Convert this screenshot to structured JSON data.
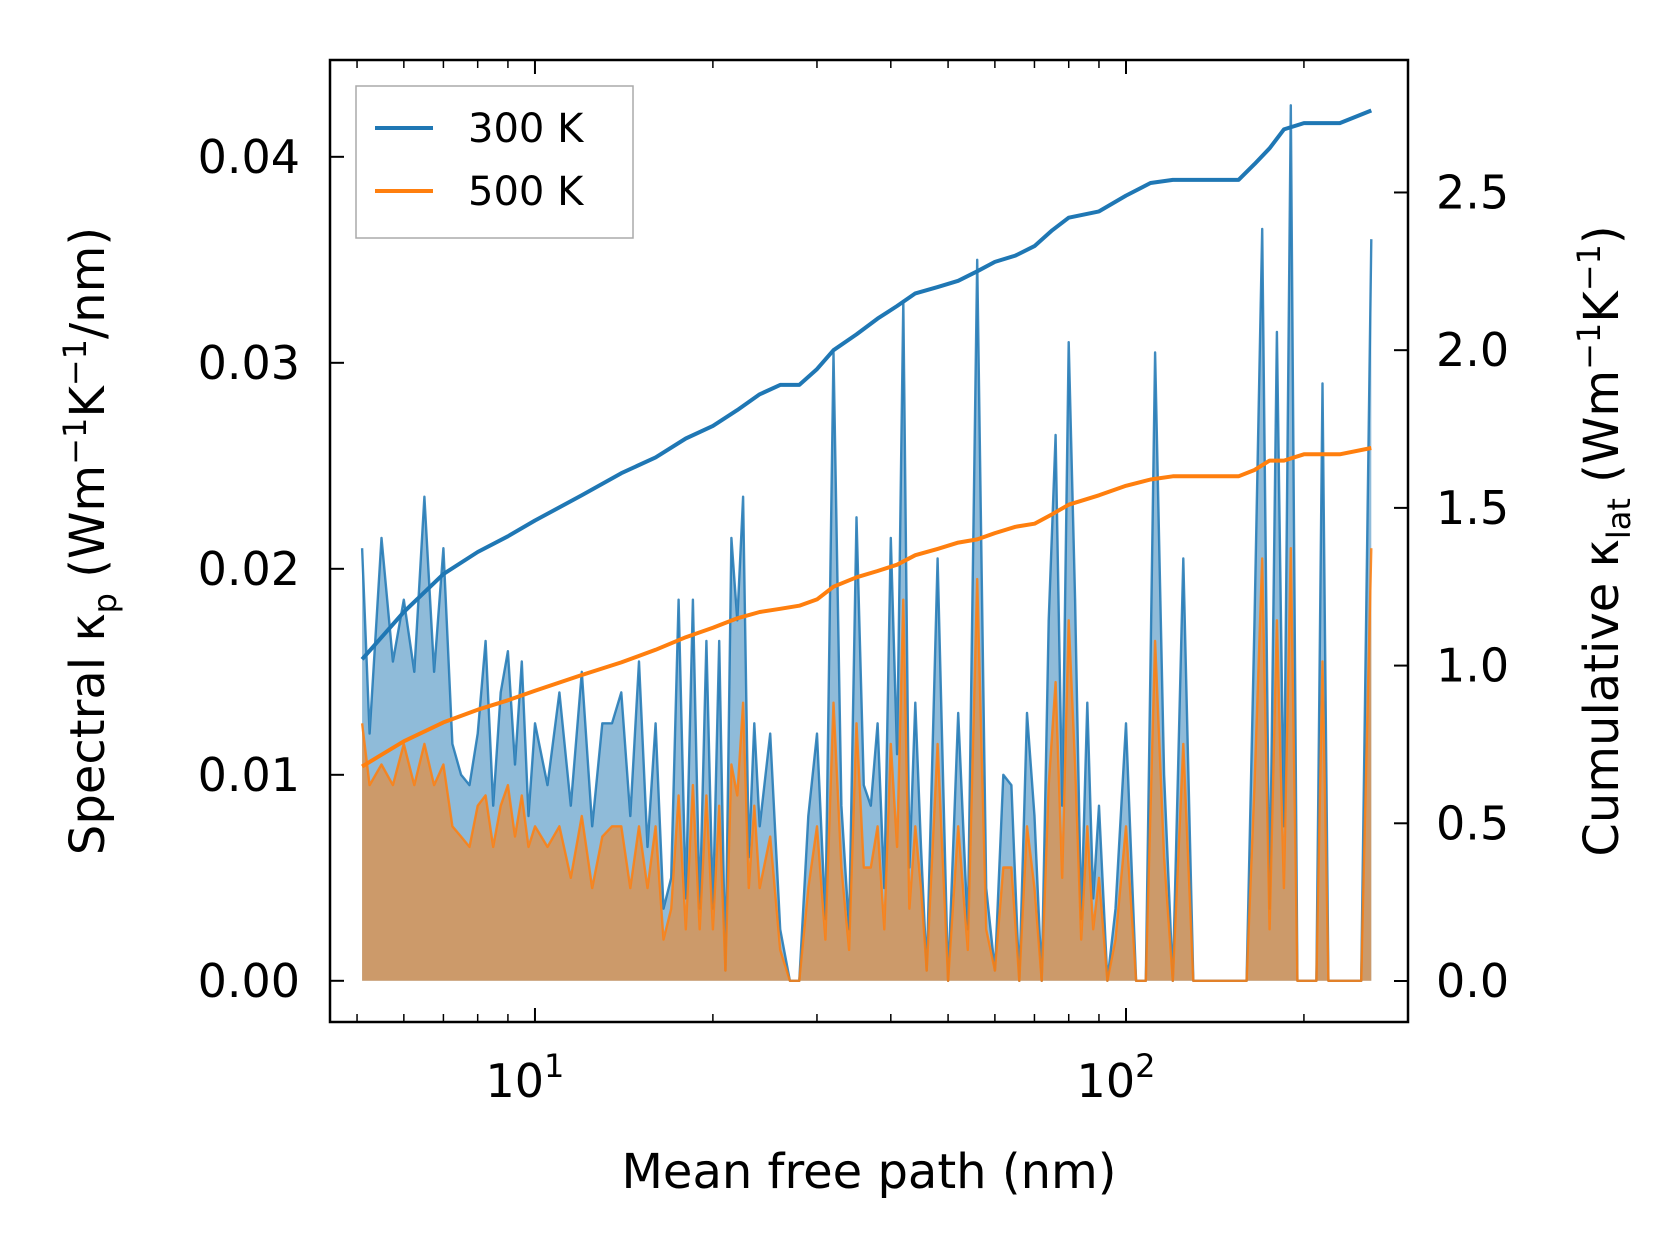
{
  "chart_data": {
    "type": "line",
    "xscale": "log",
    "xlabel": "Mean free path (nm)",
    "ylabel_left": "Spectral κp (Wm−1K−1/nm)",
    "ylabel_left_parts": {
      "pre": "Spectral κ",
      "sub": "p",
      "mid1": " (Wm",
      "sup1": "−1",
      "mid2": "K",
      "sup2": "−1",
      "post": "/nm)"
    },
    "ylabel_right": "Cumulative κlat (Wm−1K−1)",
    "ylabel_right_parts": {
      "pre": "Cumulative κ",
      "sub": "lat",
      "mid1": " (Wm",
      "sup1": "−1",
      "mid2": "K",
      "sup2": "−1",
      "post": ")"
    },
    "xlim": [
      4.5,
      300
    ],
    "ylim_left": [
      -0.002,
      0.0447
    ],
    "ylim_right": [
      -0.13,
      2.92
    ],
    "x_ticks": [
      {
        "value": 10,
        "base": "10",
        "exp": "1"
      },
      {
        "value": 100,
        "base": "10",
        "exp": "2"
      }
    ],
    "y_ticks_left": [
      "0.00",
      "0.01",
      "0.02",
      "0.03",
      "0.04"
    ],
    "y_ticks_right": [
      "0.0",
      "0.5",
      "1.0",
      "1.5",
      "2.0",
      "2.5"
    ],
    "legend": {
      "placement": "top-left",
      "entries": [
        "300 K",
        "500 K"
      ]
    },
    "colors": {
      "300 K": "#1f77b4",
      "500 K": "#ff7f0e",
      "fill_300": "#1f77b4",
      "fill_500": "#ff7f0e"
    },
    "spectral": {
      "300 K": {
        "x": [
          5.1,
          5.25,
          5.5,
          5.75,
          6.0,
          6.25,
          6.5,
          6.75,
          7.0,
          7.25,
          7.5,
          7.75,
          8.0,
          8.25,
          8.5,
          8.75,
          9.0,
          9.25,
          9.5,
          9.75,
          10.0,
          10.5,
          11.0,
          11.5,
          12.0,
          12.5,
          13.0,
          13.5,
          14.0,
          14.5,
          15.0,
          15.5,
          16.0,
          16.5,
          17.0,
          17.5,
          18.0,
          18.5,
          19.0,
          19.5,
          20.0,
          20.5,
          21.0,
          21.5,
          22.0,
          22.5,
          23.0,
          23.5,
          24.0,
          25.0,
          26.0,
          27.0,
          28.0,
          29.0,
          30.0,
          31.0,
          32.0,
          33.0,
          34.0,
          35.0,
          36.0,
          37.0,
          38.0,
          39.0,
          40.0,
          41.0,
          42.0,
          43.0,
          44.0,
          45.0,
          46.0,
          48.0,
          50.0,
          52.0,
          54.0,
          56.0,
          58.0,
          60.0,
          62.0,
          64.0,
          66.0,
          68.0,
          70.0,
          72.0,
          74.0,
          76.0,
          78.0,
          80.0,
          82.0,
          84.0,
          86.0,
          88.0,
          90.0,
          93.0,
          96.0,
          100.0,
          104.0,
          108.0,
          112.0,
          116.0,
          120.0,
          125.0,
          130.0,
          140.0,
          150.0,
          160.0,
          165.0,
          170.0,
          175.0,
          180.0,
          185.0,
          190.0,
          195.0,
          200.0,
          205.0,
          210.0,
          215.0,
          220.0,
          230.0,
          240.0,
          250.0,
          260.0
        ],
        "y": [
          0.021,
          0.012,
          0.0215,
          0.0155,
          0.0185,
          0.015,
          0.0235,
          0.015,
          0.021,
          0.0115,
          0.01,
          0.0095,
          0.012,
          0.0165,
          0.0085,
          0.014,
          0.016,
          0.0105,
          0.0155,
          0.008,
          0.0125,
          0.0095,
          0.014,
          0.0085,
          0.015,
          0.0075,
          0.0125,
          0.0125,
          0.014,
          0.008,
          0.0155,
          0.0065,
          0.0125,
          0.0035,
          0.005,
          0.0185,
          0.004,
          0.0185,
          0.0035,
          0.0165,
          0.0035,
          0.0165,
          0.0005,
          0.0215,
          0.0175,
          0.0235,
          0.006,
          0.0125,
          0.0075,
          0.012,
          0.0025,
          0.0,
          0.0,
          0.008,
          0.012,
          0.003,
          0.0305,
          0.0085,
          0.0025,
          0.0225,
          0.0095,
          0.0085,
          0.0125,
          0.0045,
          0.0215,
          0.011,
          0.033,
          0.0055,
          0.0135,
          0.0065,
          0.0005,
          0.0205,
          0.0,
          0.013,
          0.0025,
          0.035,
          0.0045,
          0.0005,
          0.01,
          0.0095,
          0.0,
          0.013,
          0.008,
          0.0,
          0.0175,
          0.0265,
          0.0085,
          0.031,
          0.0185,
          0.003,
          0.0135,
          0.004,
          0.0085,
          0.0,
          0.0035,
          0.0125,
          0.0,
          0.0,
          0.0305,
          0.01,
          0.0,
          0.0205,
          0.0,
          0.0,
          0.0,
          0.0,
          0.0175,
          0.0365,
          0.0035,
          0.0315,
          0.0075,
          0.0425,
          0.0,
          0.0,
          0.0,
          0.0,
          0.029,
          0.0,
          0.0,
          0.0,
          0.0,
          0.036
        ]
      },
      "500 K": {
        "x": [
          5.1,
          5.25,
          5.5,
          5.75,
          6.0,
          6.25,
          6.5,
          6.75,
          7.0,
          7.25,
          7.5,
          7.75,
          8.0,
          8.25,
          8.5,
          8.75,
          9.0,
          9.25,
          9.5,
          9.75,
          10.0,
          10.5,
          11.0,
          11.5,
          12.0,
          12.5,
          13.0,
          13.5,
          14.0,
          14.5,
          15.0,
          15.5,
          16.0,
          16.5,
          17.0,
          17.5,
          18.0,
          18.5,
          19.0,
          19.5,
          20.0,
          20.5,
          21.0,
          21.5,
          22.0,
          22.5,
          23.0,
          23.5,
          24.0,
          25.0,
          26.0,
          27.0,
          28.0,
          29.0,
          30.0,
          31.0,
          32.0,
          33.0,
          34.0,
          35.0,
          36.0,
          37.0,
          38.0,
          39.0,
          40.0,
          41.0,
          42.0,
          43.0,
          44.0,
          45.0,
          46.0,
          48.0,
          50.0,
          52.0,
          54.0,
          56.0,
          58.0,
          60.0,
          62.0,
          64.0,
          66.0,
          68.0,
          70.0,
          72.0,
          74.0,
          76.0,
          78.0,
          80.0,
          82.0,
          84.0,
          86.0,
          88.0,
          90.0,
          93.0,
          96.0,
          100.0,
          104.0,
          108.0,
          112.0,
          116.0,
          120.0,
          125.0,
          130.0,
          140.0,
          150.0,
          160.0,
          165.0,
          170.0,
          175.0,
          180.0,
          185.0,
          190.0,
          195.0,
          200.0,
          205.0,
          210.0,
          215.0,
          220.0,
          230.0,
          240.0,
          250.0,
          260.0
        ],
        "y": [
          0.0125,
          0.0095,
          0.0105,
          0.0095,
          0.0115,
          0.0095,
          0.0115,
          0.0095,
          0.0105,
          0.0075,
          0.007,
          0.0065,
          0.0085,
          0.009,
          0.0065,
          0.0085,
          0.0095,
          0.007,
          0.009,
          0.0065,
          0.0075,
          0.0065,
          0.0075,
          0.005,
          0.008,
          0.0045,
          0.007,
          0.0075,
          0.0075,
          0.0045,
          0.0075,
          0.0045,
          0.0075,
          0.002,
          0.0035,
          0.009,
          0.0025,
          0.0095,
          0.0025,
          0.009,
          0.0025,
          0.0085,
          0.0005,
          0.0105,
          0.009,
          0.0135,
          0.0045,
          0.0085,
          0.0045,
          0.007,
          0.0015,
          0.0,
          0.0,
          0.0045,
          0.0075,
          0.002,
          0.0135,
          0.0055,
          0.0015,
          0.0125,
          0.0055,
          0.0055,
          0.0075,
          0.0025,
          0.0115,
          0.0065,
          0.0185,
          0.0035,
          0.0075,
          0.0045,
          0.0005,
          0.0115,
          0.0,
          0.0075,
          0.0015,
          0.0195,
          0.0025,
          0.0005,
          0.0055,
          0.0055,
          0.0,
          0.0075,
          0.0045,
          0.0,
          0.0095,
          0.0145,
          0.005,
          0.0175,
          0.0105,
          0.002,
          0.0075,
          0.0025,
          0.005,
          0.0,
          0.002,
          0.0075,
          0.0,
          0.0,
          0.0165,
          0.006,
          0.0,
          0.0115,
          0.0,
          0.0,
          0.0,
          0.0,
          0.0095,
          0.0205,
          0.0025,
          0.0175,
          0.0045,
          0.021,
          0.0,
          0.0,
          0.0,
          0.0,
          0.0155,
          0.0,
          0.0,
          0.0,
          0.0,
          0.021
        ]
      }
    },
    "cumulative": {
      "300 K": {
        "x": [
          5.1,
          6.0,
          7.0,
          8.0,
          9.0,
          10.0,
          12.0,
          14.0,
          16.0,
          18.0,
          20.0,
          22.0,
          24.0,
          26.0,
          28.0,
          30.0,
          32.0,
          35.0,
          38.0,
          41.0,
          44.0,
          48.0,
          52.0,
          56.0,
          60.0,
          65.0,
          70.0,
          75.0,
          80.0,
          90.0,
          100.0,
          110.0,
          120.0,
          140.0,
          155.0,
          165.0,
          175.0,
          185.0,
          200.0,
          230.0,
          260.0
        ],
        "y": [
          1.02,
          1.17,
          1.29,
          1.36,
          1.41,
          1.46,
          1.54,
          1.61,
          1.66,
          1.72,
          1.76,
          1.81,
          1.86,
          1.89,
          1.89,
          1.94,
          2.0,
          2.05,
          2.1,
          2.14,
          2.18,
          2.2,
          2.22,
          2.25,
          2.28,
          2.3,
          2.33,
          2.38,
          2.42,
          2.44,
          2.49,
          2.53,
          2.54,
          2.54,
          2.54,
          2.59,
          2.64,
          2.7,
          2.72,
          2.72,
          2.76
        ]
      },
      "500 K": {
        "x": [
          5.1,
          6.0,
          7.0,
          8.0,
          9.0,
          10.0,
          12.0,
          14.0,
          16.0,
          18.0,
          20.0,
          22.0,
          24.0,
          26.0,
          28.0,
          30.0,
          32.0,
          35.0,
          38.0,
          41.0,
          44.0,
          48.0,
          52.0,
          56.0,
          60.0,
          65.0,
          70.0,
          75.0,
          80.0,
          90.0,
          100.0,
          110.0,
          120.0,
          140.0,
          155.0,
          165.0,
          175.0,
          185.0,
          200.0,
          230.0,
          260.0
        ],
        "y": [
          0.68,
          0.76,
          0.82,
          0.86,
          0.89,
          0.92,
          0.97,
          1.01,
          1.05,
          1.09,
          1.12,
          1.15,
          1.17,
          1.18,
          1.19,
          1.21,
          1.25,
          1.28,
          1.3,
          1.32,
          1.35,
          1.37,
          1.39,
          1.4,
          1.42,
          1.44,
          1.45,
          1.48,
          1.51,
          1.54,
          1.57,
          1.59,
          1.6,
          1.6,
          1.6,
          1.62,
          1.65,
          1.65,
          1.67,
          1.67,
          1.69
        ]
      }
    }
  }
}
